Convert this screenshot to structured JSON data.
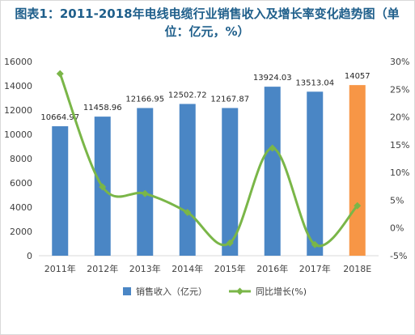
{
  "chart_data": {
    "type": "bar",
    "title": "图表1：2011-2018年电线电缆行业销售收入及增长率变化趋势图（单位：亿元，%）",
    "categories": [
      "2011年",
      "2012年",
      "2013年",
      "2014年",
      "2015年",
      "2016年",
      "2017年",
      "2018E"
    ],
    "series": [
      {
        "name": "销售收入（亿元）",
        "type": "bar",
        "axis": "left",
        "values": [
          10664.97,
          11458.96,
          12166.95,
          12502.72,
          12167.87,
          13924.03,
          13513.04,
          14057
        ],
        "labels": [
          "10664.97",
          "11458.96",
          "12166.95",
          "12502.72",
          "12167.87",
          "13924.03",
          "13513.04",
          "14057"
        ],
        "color": "#4a86c5",
        "highlight_color": "#f79646",
        "highlight_index": 7
      },
      {
        "name": "同比增长(%)",
        "type": "line",
        "axis": "right",
        "values": [
          27.8,
          7.4,
          6.2,
          2.8,
          -2.7,
          14.4,
          -3.0,
          4.0
        ],
        "color": "#7ab648"
      }
    ],
    "y_left": {
      "min": 0,
      "max": 16000,
      "ticks": [
        "0",
        "2000",
        "4000",
        "6000",
        "8000",
        "10000",
        "12000",
        "14000",
        "16000"
      ]
    },
    "y_right": {
      "min": -5,
      "max": 30,
      "ticks": [
        "-5%",
        "0%",
        "5%",
        "10%",
        "15%",
        "20%",
        "25%",
        "30%"
      ]
    },
    "grid": false,
    "legend": "bottom"
  }
}
